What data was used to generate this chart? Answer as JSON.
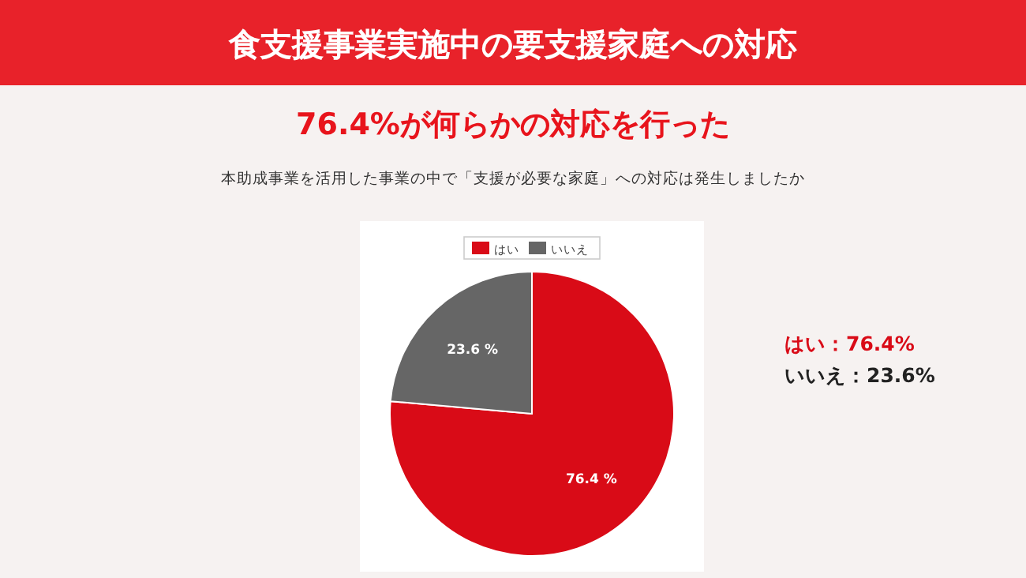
{
  "chart_data": {
    "type": "pie",
    "title": "食支援事業実施中の要支援家庭への対応",
    "subtitle": "76.4%が何らかの対応を行った",
    "annotations": [
      "本助成事業を活用した事業の中で「支援が必要な家庭」への対応は発生しましたか",
      "はい：76.4%",
      "いいえ：23.6%"
    ],
    "categories": [
      "はい",
      "いいえ"
    ],
    "values": [
      76.4,
      23.6
    ],
    "colors": [
      "#d90b17",
      "#666666"
    ],
    "value_labels": [
      "76.4 %",
      "23.6 %"
    ],
    "legend": "top"
  }
}
